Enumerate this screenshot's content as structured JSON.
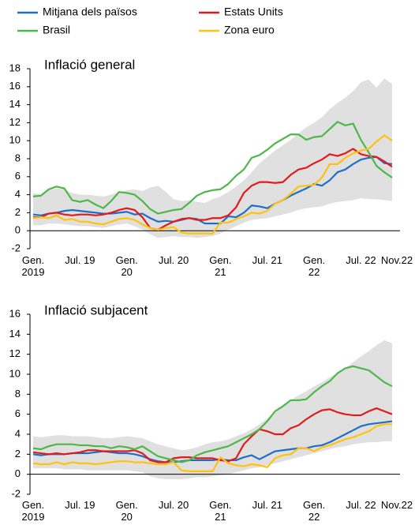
{
  "chart_data": [
    {
      "type": "line",
      "title": "Inflació general",
      "categories": [
        "Gen. 2019",
        null,
        null,
        null,
        null,
        null,
        "Jul. 19",
        null,
        null,
        null,
        null,
        null,
        "Gen. 20",
        null,
        null,
        null,
        null,
        null,
        "Jul. 20",
        null,
        null,
        null,
        null,
        null,
        "Gen. 21",
        null,
        null,
        null,
        null,
        null,
        "Jul. 21",
        null,
        null,
        null,
        null,
        null,
        "Gen. 22",
        null,
        null,
        null,
        null,
        null,
        "Jul. 22",
        null,
        null,
        null,
        "Nov.22"
      ],
      "ylim": [
        -2,
        18
      ],
      "yticks": [
        -2,
        0,
        2,
        4,
        6,
        8,
        10,
        12,
        14,
        16,
        18
      ],
      "band": {
        "color": "#e0e0e0",
        "high": [
          4.2,
          4.0,
          4.5,
          4.7,
          4.6,
          4.2,
          4.0,
          4.0,
          3.9,
          3.8,
          4.0,
          4.3,
          4.5,
          4.6,
          4.4,
          4.8,
          5.0,
          4.3,
          3.5,
          3.3,
          3.4,
          3.2,
          3.1,
          3.5,
          3.8,
          4.3,
          4.9,
          5.6,
          6.5,
          7.5,
          8.2,
          8.9,
          9.5,
          10.1,
          10.8,
          11.5,
          12.0,
          12.6,
          13.5,
          14.2,
          14.8,
          15.5,
          16.5,
          16.8,
          15.9,
          16.9,
          16.3
        ],
        "low": [
          0.6,
          0.6,
          0.8,
          0.8,
          0.7,
          0.6,
          0.5,
          0.5,
          0.4,
          0.3,
          0.5,
          0.7,
          0.8,
          0.5,
          0.1,
          -0.4,
          -0.8,
          -0.7,
          -0.6,
          -0.7,
          -0.7,
          -0.8,
          -0.7,
          -0.6,
          -0.3,
          0.1,
          0.5,
          0.9,
          1.2,
          1.3,
          1.4,
          1.6,
          1.8,
          2.0,
          2.3,
          2.5,
          2.6,
          2.7,
          3.0,
          3.2,
          3.3,
          3.4,
          3.6,
          3.5,
          3.5,
          3.4,
          3.3
        ]
      },
      "series": [
        {
          "name": "Mitjana dels països",
          "color": "#1f6fc5",
          "values": [
            1.8,
            1.7,
            1.9,
            2.0,
            2.2,
            2.3,
            2.2,
            2.1,
            2.0,
            1.9,
            1.9,
            2.0,
            2.1,
            1.8,
            1.9,
            1.4,
            1.0,
            1.1,
            1.0,
            1.2,
            1.4,
            1.3,
            0.8,
            0.8,
            0.8,
            1.6,
            1.5,
            2.0,
            2.8,
            2.7,
            2.5,
            3.0,
            3.4,
            3.9,
            4.3,
            4.7,
            5.2,
            5.0,
            5.6,
            6.5,
            6.8,
            7.4,
            7.9,
            8.1,
            8.2,
            7.5,
            7.4
          ]
        },
        {
          "name": "Estats Units",
          "color": "#e31a1c",
          "values": [
            1.5,
            1.5,
            1.9,
            2.0,
            1.8,
            1.7,
            1.8,
            1.8,
            1.7,
            1.8,
            2.0,
            2.3,
            2.5,
            2.3,
            1.5,
            0.3,
            0.1,
            0.6,
            1.0,
            1.3,
            1.4,
            1.2,
            1.2,
            1.4,
            1.4,
            1.7,
            2.6,
            4.2,
            5.0,
            5.4,
            5.4,
            5.3,
            5.4,
            6.2,
            6.8,
            7.0,
            7.5,
            7.9,
            8.5,
            8.3,
            8.6,
            9.1,
            8.5,
            8.3,
            8.2,
            7.7,
            7.1
          ]
        },
        {
          "name": "Brasil",
          "color": "#4db848",
          "values": [
            3.8,
            3.9,
            4.6,
            4.9,
            4.7,
            3.4,
            3.2,
            3.4,
            2.9,
            2.5,
            3.3,
            4.3,
            4.2,
            4.0,
            3.3,
            2.4,
            1.9,
            2.1,
            2.3,
            2.4,
            3.1,
            3.9,
            4.3,
            4.5,
            4.6,
            5.2,
            6.1,
            6.8,
            8.1,
            8.4,
            9.0,
            9.7,
            10.2,
            10.7,
            10.7,
            10.1,
            10.4,
            10.5,
            11.3,
            12.1,
            11.7,
            11.9,
            10.1,
            8.7,
            7.2,
            6.5,
            5.9
          ]
        },
        {
          "name": "Zona euro",
          "color": "#ffc20e",
          "values": [
            1.4,
            1.5,
            1.4,
            1.7,
            1.2,
            1.3,
            1.0,
            1.0,
            0.8,
            0.7,
            1.0,
            1.3,
            1.4,
            1.2,
            0.7,
            0.3,
            0.1,
            0.3,
            0.4,
            -0.2,
            -0.3,
            -0.3,
            -0.3,
            -0.3,
            0.9,
            0.9,
            1.3,
            1.6,
            2.0,
            1.9,
            2.2,
            3.0,
            3.4,
            4.1,
            4.9,
            5.0,
            5.1,
            5.9,
            7.4,
            7.4,
            8.1,
            8.6,
            8.9,
            9.1,
            9.9,
            10.6,
            10.0
          ]
        }
      ]
    },
    {
      "type": "line",
      "title": "Inflació subjacent",
      "categories": [
        "Gen. 2019",
        null,
        null,
        null,
        null,
        null,
        "Jul. 19",
        null,
        null,
        null,
        null,
        null,
        "Gen. 20",
        null,
        null,
        null,
        null,
        null,
        "Jul. 20",
        null,
        null,
        null,
        null,
        null,
        "Gen. 21",
        null,
        null,
        null,
        null,
        null,
        "Jul. 21",
        null,
        null,
        null,
        null,
        null,
        "Gen. 22",
        null,
        null,
        null,
        null,
        null,
        "Jul. 22",
        null,
        null,
        null,
        "Nov.22"
      ],
      "ylim": [
        -2,
        16
      ],
      "yticks": [
        -2,
        0,
        2,
        4,
        6,
        8,
        10,
        12,
        14,
        16
      ],
      "band": {
        "color": "#e0e0e0",
        "high": [
          3.8,
          3.7,
          3.8,
          3.9,
          3.9,
          3.8,
          3.8,
          3.8,
          3.7,
          3.6,
          3.6,
          3.7,
          3.8,
          3.7,
          3.6,
          3.3,
          3.0,
          2.8,
          2.6,
          2.4,
          2.5,
          2.7,
          3.0,
          3.2,
          3.3,
          3.5,
          3.8,
          4.1,
          4.5,
          5.0,
          5.6,
          6.2,
          6.8,
          7.4,
          7.9,
          8.3,
          8.8,
          9.2,
          9.7,
          10.1,
          10.6,
          11.2,
          11.8,
          12.3,
          12.9,
          13.4,
          13.1
        ],
        "low": [
          0.6,
          0.6,
          0.6,
          0.6,
          0.5,
          0.5,
          0.5,
          0.4,
          0.4,
          0.4,
          0.4,
          0.4,
          0.4,
          0.3,
          0.2,
          -0.2,
          -0.4,
          -0.5,
          -0.5,
          -0.5,
          -0.4,
          -0.3,
          -0.3,
          -0.2,
          -0.1,
          0.0,
          0.2,
          0.4,
          0.6,
          0.7,
          0.9,
          1.1,
          1.3,
          1.5,
          1.7,
          1.9,
          2.1,
          2.3,
          2.5,
          2.7,
          2.8,
          3.0,
          3.1,
          3.2,
          3.2,
          3.3,
          3.3
        ]
      },
      "series": [
        {
          "color": "#1f6fc5",
          "values": [
            2.0,
            1.9,
            2.0,
            2.0,
            2.0,
            2.1,
            2.1,
            2.1,
            2.2,
            2.3,
            2.2,
            2.1,
            2.1,
            2.0,
            1.8,
            1.5,
            1.3,
            1.2,
            1.2,
            1.3,
            1.4,
            1.4,
            1.4,
            1.4,
            1.5,
            1.4,
            1.4,
            1.7,
            1.9,
            1.5,
            1.9,
            2.3,
            2.4,
            2.5,
            2.6,
            2.6,
            2.8,
            2.9,
            3.2,
            3.6,
            4.0,
            4.4,
            4.8,
            5.0,
            5.1,
            5.2,
            5.3
          ]
        },
        {
          "color": "#e31a1c",
          "values": [
            2.2,
            2.1,
            2.0,
            2.1,
            2.0,
            2.1,
            2.2,
            2.4,
            2.4,
            2.3,
            2.3,
            2.3,
            2.3,
            2.4,
            2.1,
            1.4,
            1.2,
            1.2,
            1.6,
            1.7,
            1.7,
            1.6,
            1.6,
            1.6,
            1.4,
            1.3,
            1.6,
            3.0,
            3.8,
            4.5,
            4.3,
            4.0,
            4.0,
            4.6,
            4.9,
            5.5,
            6.0,
            6.4,
            6.5,
            6.2,
            6.0,
            5.9,
            5.9,
            6.3,
            6.6,
            6.3,
            6.0
          ]
        },
        {
          "color": "#4db848",
          "values": [
            2.6,
            2.5,
            2.8,
            3.0,
            3.0,
            3.0,
            2.9,
            2.9,
            2.8,
            2.8,
            2.6,
            2.8,
            2.7,
            2.5,
            2.8,
            2.3,
            1.8,
            1.6,
            1.4,
            1.2,
            1.4,
            1.9,
            2.2,
            2.4,
            2.6,
            2.8,
            3.2,
            3.6,
            4.0,
            4.5,
            5.3,
            6.3,
            6.8,
            7.4,
            7.4,
            7.5,
            8.2,
            8.8,
            9.3,
            10.1,
            10.6,
            10.8,
            10.6,
            10.4,
            9.8,
            9.2,
            8.8
          ]
        },
        {
          "color": "#ffc20e",
          "values": [
            1.1,
            1.0,
            1.0,
            1.2,
            1.0,
            1.2,
            1.1,
            1.1,
            1.0,
            1.1,
            1.2,
            1.3,
            1.3,
            1.2,
            1.2,
            1.1,
            1.0,
            1.0,
            1.2,
            0.4,
            0.3,
            0.3,
            0.3,
            0.3,
            1.7,
            1.1,
            0.9,
            0.8,
            1.0,
            0.9,
            0.7,
            1.6,
            1.9,
            2.0,
            2.6,
            2.6,
            2.3,
            2.7,
            2.9,
            3.2,
            3.5,
            3.7,
            4.0,
            4.3,
            4.8,
            5.0,
            5.0
          ]
        }
      ]
    }
  ]
}
